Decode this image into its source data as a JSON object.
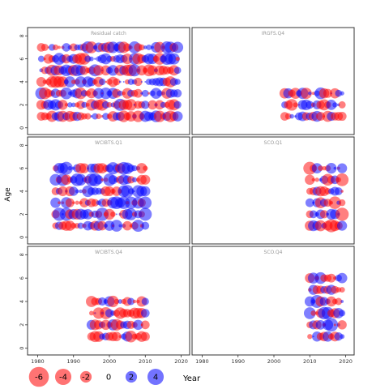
{
  "chart_data": {
    "type": "scatter",
    "ylabel": "Age",
    "legend": {
      "title": "Year",
      "placement": "bottom",
      "values": [
        -6,
        -4,
        -2,
        0,
        2,
        4
      ],
      "labels": [
        "-6",
        "-4",
        "-2",
        "0",
        "2",
        "4"
      ]
    },
    "colors": {
      "positive": "#0000ff",
      "negative": "#ff0000"
    },
    "x_axis": {
      "ticks": [
        1980,
        1990,
        2000,
        2010,
        2020
      ],
      "labels": [
        "1980",
        "1990",
        "2000",
        "2010",
        "2020"
      ],
      "lim": [
        1979,
        2021
      ]
    },
    "y_axis": {
      "ticks": [
        0,
        2,
        4,
        6,
        8
      ],
      "labels": [
        "0",
        "2",
        "4",
        "6",
        "8"
      ],
      "lim": [
        -0.3,
        8.3
      ]
    },
    "panels": [
      {
        "title": "Residual catch",
        "years": [
          1981,
          2019
        ],
        "ages": [
          1,
          2,
          3,
          4,
          5,
          6,
          7
        ],
        "seed": 11,
        "pos_bias": 0.0
      },
      {
        "title": "IRGFS.Q4",
        "years": [
          2003,
          2019
        ],
        "ages": [
          1,
          2,
          3
        ],
        "seed": 23,
        "pos_bias": 0.0
      },
      {
        "title": "WCIBTS.Q1",
        "years": [
          1985,
          2010
        ],
        "ages": [
          1,
          2,
          3,
          4,
          5,
          6
        ],
        "seed": 37,
        "pos_bias": 0.1
      },
      {
        "title": "SCO.Q1",
        "years": [
          2010,
          2019
        ],
        "ages": [
          1,
          2,
          3,
          4,
          5,
          6
        ],
        "seed": 41,
        "pos_bias": -0.1
      },
      {
        "title": "WCIBTS.Q4",
        "years": [
          1995,
          2010
        ],
        "ages": [
          1,
          2,
          3,
          4
        ],
        "seed": 53,
        "pos_bias": 0.0
      },
      {
        "title": "SCO.Q4",
        "years": [
          2010,
          2019
        ],
        "ages": [
          1,
          2,
          3,
          4,
          5,
          6
        ],
        "seed": 67,
        "pos_bias": 0.15
      }
    ]
  }
}
